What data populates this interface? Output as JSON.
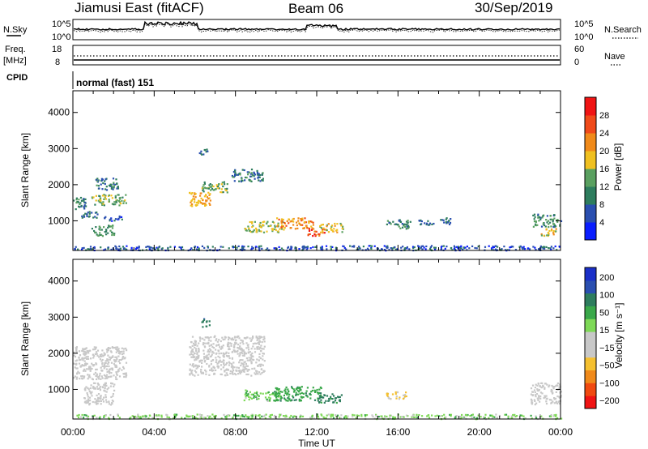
{
  "header": {
    "title": "Jiamusi East (fitACF)",
    "beam": "Beam 06",
    "date": "30/Sep/2019"
  },
  "panels": {
    "nsky": {
      "label": "N.Sky",
      "left_ticks": [
        "10^5",
        "10^0"
      ],
      "right_label": "N.Search",
      "right_ticks": [
        "10^5",
        "10^0"
      ]
    },
    "freq": {
      "label_top": "Freq.",
      "label_units": "[MHz]",
      "left_ticks": [
        "18",
        "8"
      ],
      "right_label": "Nave",
      "right_ticks": [
        "60",
        "0"
      ]
    },
    "cpid": {
      "label": "CPID",
      "value": "normal (fast) 151"
    }
  },
  "colors": {
    "power_scale": [
      "#0a1eff",
      "#2a4fb0",
      "#2e7d5e",
      "#5aa060",
      "#f0c020",
      "#f08a1a",
      "#f04a1a",
      "#f01414"
    ],
    "velocity_scale": [
      "#f01414",
      "#f04a10",
      "#f08a1a",
      "#f5c030",
      "#c8c8c8",
      "#c8c8c8",
      "#7ed957",
      "#3aa84a",
      "#2e7d5e",
      "#2a4fb0",
      "#1a2fc8"
    ],
    "ground_scatter": "#c8c8c8"
  },
  "chart_data": [
    {
      "type": "heatmap",
      "name": "power",
      "ylabel": "Slant Range [km]",
      "xlabel": "",
      "y_ticks": [
        1000,
        2000,
        3000,
        4000
      ],
      "x_ticks": [
        0,
        4,
        8,
        12,
        16,
        20,
        24
      ],
      "x_tick_labels": [
        "00:00",
        "04:00",
        "08:00",
        "12:00",
        "16:00",
        "20:00",
        "00:00"
      ],
      "xlim": [
        0,
        24
      ],
      "ylim": [
        180,
        4600
      ],
      "colorbar": {
        "label": "Power [dB]",
        "ticks": [
          "4",
          "8",
          "12",
          "16",
          "20",
          "24",
          "28"
        ],
        "range": [
          0,
          32
        ]
      },
      "regions": [
        {
          "t": [
            0.0,
            0.6
          ],
          "r": [
            1300,
            1700
          ],
          "value": 10
        },
        {
          "t": [
            0.9,
            2.6
          ],
          "r": [
            1450,
            1750
          ],
          "value": 14
        },
        {
          "t": [
            1.1,
            2.2
          ],
          "r": [
            1850,
            2200
          ],
          "value": 9
        },
        {
          "t": [
            0.4,
            1.2
          ],
          "r": [
            1100,
            1300
          ],
          "value": 8
        },
        {
          "t": [
            1.5,
            2.4
          ],
          "r": [
            1000,
            1150
          ],
          "value": 7
        },
        {
          "t": [
            0.9,
            2.0
          ],
          "r": [
            600,
            900
          ],
          "value": 12
        },
        {
          "t": [
            5.7,
            6.8
          ],
          "r": [
            1400,
            1800
          ],
          "value": 20
        },
        {
          "t": [
            6.3,
            7.6
          ],
          "r": [
            1800,
            2100
          ],
          "value": 14
        },
        {
          "t": [
            7.8,
            9.4
          ],
          "r": [
            2100,
            2450
          ],
          "value": 9
        },
        {
          "t": [
            6.2,
            6.6
          ],
          "r": [
            2800,
            3000
          ],
          "value": 8
        },
        {
          "t": [
            8.4,
            10.4
          ],
          "r": [
            700,
            1000
          ],
          "value": 16
        },
        {
          "t": [
            10.0,
            11.8
          ],
          "r": [
            800,
            1100
          ],
          "value": 22
        },
        {
          "t": [
            11.5,
            12.4
          ],
          "r": [
            600,
            800
          ],
          "value": 26
        },
        {
          "t": [
            12.1,
            13.3
          ],
          "r": [
            700,
            950
          ],
          "value": 18
        },
        {
          "t": [
            15.4,
            16.6
          ],
          "r": [
            800,
            1050
          ],
          "value": 10
        },
        {
          "t": [
            17.0,
            17.8
          ],
          "r": [
            900,
            1050
          ],
          "value": 8
        },
        {
          "t": [
            18.0,
            18.6
          ],
          "r": [
            900,
            1100
          ],
          "value": 8
        },
        {
          "t": [
            22.6,
            24.0
          ],
          "r": [
            850,
            1200
          ],
          "value": 11
        },
        {
          "t": [
            23.0,
            23.8
          ],
          "r": [
            600,
            800
          ],
          "value": 18
        },
        {
          "t": [
            0.0,
            24.0
          ],
          "r": [
            200,
            330
          ],
          "value": 6
        }
      ]
    },
    {
      "type": "heatmap",
      "name": "velocity",
      "ylabel": "Slant Range [km]",
      "xlabel": "Time UT",
      "y_ticks": [
        1000,
        2000,
        3000,
        4000
      ],
      "x_ticks": [
        0,
        4,
        8,
        12,
        16,
        20,
        24
      ],
      "x_tick_labels": [
        "00:00",
        "04:00",
        "08:00",
        "12:00",
        "16:00",
        "20:00",
        "00:00"
      ],
      "xlim": [
        0,
        24
      ],
      "ylim": [
        180,
        4600
      ],
      "colorbar": {
        "label": "Velocity [m s⁻¹]",
        "ticks": [
          "200",
          "100",
          "50",
          "15",
          "−15",
          "−50",
          "−100",
          "−200"
        ]
      },
      "regions": [
        {
          "t": [
            0.0,
            2.6
          ],
          "r": [
            1300,
            2200
          ],
          "value": "ground"
        },
        {
          "t": [
            0.5,
            2.0
          ],
          "r": [
            600,
            1200
          ],
          "value": "ground"
        },
        {
          "t": [
            5.7,
            9.4
          ],
          "r": [
            1400,
            2500
          ],
          "value": "ground"
        },
        {
          "t": [
            8.4,
            10.2
          ],
          "r": [
            700,
            1000
          ],
          "value": 40
        },
        {
          "t": [
            9.8,
            12.2
          ],
          "r": [
            700,
            1100
          ],
          "value": 80
        },
        {
          "t": [
            12.0,
            13.2
          ],
          "r": [
            650,
            900
          ],
          "value": 120
        },
        {
          "t": [
            15.4,
            16.4
          ],
          "r": [
            750,
            950
          ],
          "value": -20
        },
        {
          "t": [
            22.5,
            24.0
          ],
          "r": [
            600,
            1200
          ],
          "value": "ground"
        },
        {
          "t": [
            6.3,
            6.7
          ],
          "r": [
            2750,
            3000
          ],
          "value": 180
        },
        {
          "t": [
            0.0,
            24.0
          ],
          "r": [
            200,
            330
          ],
          "value": 30
        }
      ]
    }
  ]
}
